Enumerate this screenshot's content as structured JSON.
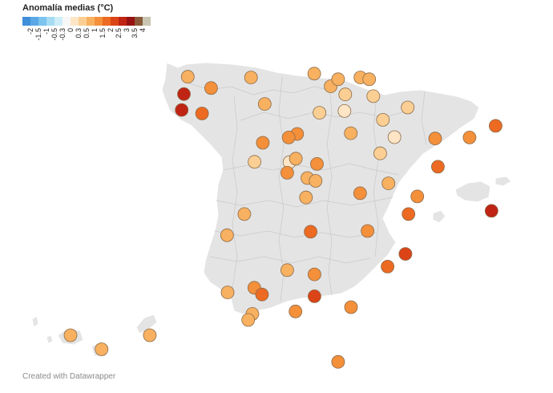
{
  "legend": {
    "title": "Anomalía medias (°C)",
    "ticks": [
      "-2",
      "-1.5",
      "-1",
      "-0.5",
      "-0.3",
      "0",
      "0.3",
      "0.5",
      "1",
      "1.5",
      "2",
      "2.5",
      "3",
      "3.5",
      "4"
    ],
    "colors": [
      "#3f8fd9",
      "#5aa8e6",
      "#7cc3ee",
      "#a6dcf3",
      "#cdeef8",
      "#f7f7f7",
      "#fde5c6",
      "#fbcf93",
      "#f8b160",
      "#f48f3a",
      "#ec6a21",
      "#db4417",
      "#c02414",
      "#961212",
      "#8a5a3a",
      "#c8c6b2"
    ]
  },
  "footer": "Created with Datawrapper",
  "map_colors": {
    "land": "#e4e4e4",
    "border": "#ffffff",
    "marker_stroke": "#8a6a4a"
  },
  "stations": [
    {
      "lon": -8.4,
      "lat": 43.37,
      "anom": 0.6
    },
    {
      "lon": -7.55,
      "lat": 43.05,
      "anom": 1.2
    },
    {
      "lon": -6.1,
      "lat": 43.35,
      "anom": 0.6
    },
    {
      "lon": -8.54,
      "lat": 42.88,
      "anom": 2.8
    },
    {
      "lon": -8.62,
      "lat": 42.43,
      "anom": 2.6
    },
    {
      "lon": -7.88,
      "lat": 42.33,
      "anom": 1.8
    },
    {
      "lon": -5.6,
      "lat": 42.6,
      "anom": 0.6
    },
    {
      "lon": -3.8,
      "lat": 43.46,
      "anom": 0.6
    },
    {
      "lon": -3.2,
      "lat": 43.1,
      "anom": 0.7
    },
    {
      "lon": -2.93,
      "lat": 43.3,
      "anom": 0.5
    },
    {
      "lon": -2.12,
      "lat": 43.35,
      "anom": 0.6
    },
    {
      "lon": -1.8,
      "lat": 43.3,
      "anom": 0.6
    },
    {
      "lon": -3.61,
      "lat": 42.35,
      "anom": 0.4
    },
    {
      "lon": -2.67,
      "lat": 42.87,
      "anom": 0.3
    },
    {
      "lon": -2.7,
      "lat": 42.4,
      "anom": 0.1
    },
    {
      "lon": -1.65,
      "lat": 42.82,
      "anom": 0.4
    },
    {
      "lon": -0.4,
      "lat": 42.5,
      "anom": 0.4
    },
    {
      "lon": -2.47,
      "lat": 41.77,
      "anom": 0.6
    },
    {
      "lon": -1.3,
      "lat": 42.15,
      "anom": 0.4
    },
    {
      "lon": -0.88,
      "lat": 41.66,
      "anom": 0.0
    },
    {
      "lon": -1.4,
      "lat": 41.2,
      "anom": 0.4
    },
    {
      "lon": 0.6,
      "lat": 41.62,
      "anom": 1.2
    },
    {
      "lon": 0.7,
      "lat": 40.82,
      "anom": 1.6
    },
    {
      "lon": 1.85,
      "lat": 41.65,
      "anom": 1.3
    },
    {
      "lon": 2.8,
      "lat": 41.98,
      "anom": 1.7
    },
    {
      "lon": -4.42,
      "lat": 41.75,
      "anom": 1.4
    },
    {
      "lon": -4.73,
      "lat": 41.65,
      "anom": 1.0
    },
    {
      "lon": -5.67,
      "lat": 41.5,
      "anom": 1.1
    },
    {
      "lon": -5.97,
      "lat": 40.96,
      "anom": 0.4
    },
    {
      "lon": -4.7,
      "lat": 40.95,
      "anom": 0.0
    },
    {
      "lon": -4.47,
      "lat": 41.05,
      "anom": 0.6
    },
    {
      "lon": -3.7,
      "lat": 40.9,
      "anom": 1.0
    },
    {
      "lon": -4.78,
      "lat": 40.65,
      "anom": 1.2
    },
    {
      "lon": -4.05,
      "lat": 40.5,
      "anom": 0.6
    },
    {
      "lon": -3.75,
      "lat": 40.42,
      "anom": 0.7
    },
    {
      "lon": -4.1,
      "lat": 39.95,
      "anom": 0.6
    },
    {
      "lon": -2.13,
      "lat": 40.07,
      "anom": 1.0
    },
    {
      "lon": -1.1,
      "lat": 40.35,
      "anom": 0.5
    },
    {
      "lon": -0.05,
      "lat": 39.98,
      "anom": 1.2
    },
    {
      "lon": -0.37,
      "lat": 39.48,
      "anom": 1.5
    },
    {
      "lon": -6.34,
      "lat": 39.48,
      "anom": 0.8
    },
    {
      "lon": -6.97,
      "lat": 38.88,
      "anom": 0.6
    },
    {
      "lon": -3.93,
      "lat": 38.98,
      "anom": 1.6
    },
    {
      "lon": -1.86,
      "lat": 39.0,
      "anom": 1.2
    },
    {
      "lon": -0.48,
      "lat": 38.35,
      "anom": 2.0
    },
    {
      "lon": -1.13,
      "lat": 37.99,
      "anom": 1.8
    },
    {
      "lon": -4.78,
      "lat": 37.89,
      "anom": 0.7
    },
    {
      "lon": -3.79,
      "lat": 37.77,
      "anom": 1.3
    },
    {
      "lon": -6.95,
      "lat": 37.26,
      "anom": 0.7
    },
    {
      "lon": -5.98,
      "lat": 37.39,
      "anom": 1.1
    },
    {
      "lon": -5.7,
      "lat": 37.2,
      "anom": 1.5
    },
    {
      "lon": -3.79,
      "lat": 37.15,
      "anom": 2.2
    },
    {
      "lon": -6.05,
      "lat": 36.65,
      "anom": 0.6
    },
    {
      "lon": -6.2,
      "lat": 36.48,
      "anom": 0.7
    },
    {
      "lon": -4.48,
      "lat": 36.72,
      "anom": 1.1
    },
    {
      "lon": -2.46,
      "lat": 36.84,
      "anom": 1.0
    },
    {
      "lon": 2.65,
      "lat": 39.57,
      "anom": 2.5
    },
    {
      "lon": -2.93,
      "lat": 35.29,
      "anom": 1.1
    },
    {
      "lon": -16.3,
      "lat": 28.45,
      "anom": 0.6
    },
    {
      "lon": -14.0,
      "lat": 28.45,
      "anom": 0.6
    },
    {
      "lon": -15.4,
      "lat": 27.95,
      "anom": 0.7
    }
  ]
}
